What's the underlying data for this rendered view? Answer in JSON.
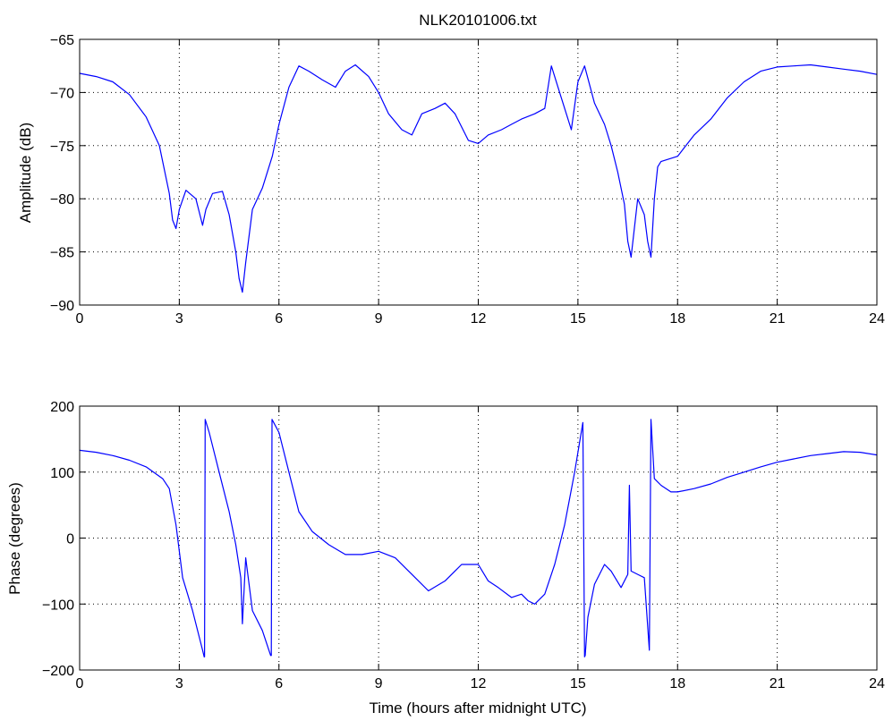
{
  "title": "NLK20101006.txt",
  "colors": {
    "line": "#0000ff",
    "axis": "#000000",
    "grid": "#000000"
  },
  "chart_data": [
    {
      "type": "line",
      "title": "NLK20101006.txt",
      "xlabel": "",
      "ylabel": "Amplitude (dB)",
      "xlim": [
        0,
        24
      ],
      "ylim": [
        -90,
        -65
      ],
      "xticks": [
        "0",
        "3",
        "6",
        "9",
        "12",
        "15",
        "18",
        "21",
        "24"
      ],
      "yticks": [
        "-65",
        "-70",
        "-75",
        "-80",
        "-85",
        "-90"
      ],
      "grid": true,
      "x": [
        0,
        0.5,
        1.0,
        1.5,
        2.0,
        2.4,
        2.7,
        2.8,
        2.9,
        3.0,
        3.2,
        3.5,
        3.7,
        3.8,
        4.0,
        4.3,
        4.5,
        4.7,
        4.8,
        4.9,
        5.0,
        5.2,
        5.5,
        5.8,
        6.0,
        6.3,
        6.6,
        6.9,
        7.3,
        7.7,
        8.0,
        8.3,
        8.7,
        9.0,
        9.3,
        9.7,
        10.0,
        10.3,
        10.7,
        11.0,
        11.3,
        11.7,
        12.0,
        12.3,
        12.7,
        13.0,
        13.3,
        13.7,
        14.0,
        14.2,
        14.5,
        14.8,
        15.0,
        15.2,
        15.5,
        15.8,
        16.0,
        16.2,
        16.4,
        16.5,
        16.6,
        16.8,
        17.0,
        17.1,
        17.2,
        17.3,
        17.4,
        17.5,
        18.0,
        18.5,
        19.0,
        19.5,
        20.0,
        20.5,
        21.0,
        21.5,
        22.0,
        22.5,
        23.0,
        23.5,
        24.0
      ],
      "series": [
        {
          "values": [
            -68.2,
            -68.5,
            -69.0,
            -70.2,
            -72.3,
            -75.0,
            -79.5,
            -82.0,
            -82.8,
            -81.0,
            -79.2,
            -80.0,
            -82.5,
            -81.0,
            -79.5,
            -79.3,
            -81.5,
            -85.0,
            -87.5,
            -88.8,
            -86.0,
            -81.0,
            -79.0,
            -76.0,
            -73.0,
            -69.5,
            -67.5,
            -68.0,
            -68.8,
            -69.5,
            -68.0,
            -67.4,
            -68.5,
            -70.0,
            -72.0,
            -73.5,
            -74.0,
            -72.0,
            -71.5,
            -71.0,
            -72.0,
            -74.5,
            -74.8,
            -74.0,
            -73.5,
            -73.0,
            -72.5,
            -72.0,
            -71.5,
            -67.5,
            -70.5,
            -73.5,
            -69.0,
            -67.5,
            -71.0,
            -73.0,
            -75.0,
            -77.5,
            -80.5,
            -84.0,
            -85.5,
            -80.0,
            -81.5,
            -84.0,
            -85.5,
            -80.0,
            -77.0,
            -76.5,
            -76.0,
            -74.0,
            -72.5,
            -70.5,
            -69.0,
            -68.0,
            -67.6,
            -67.5,
            -67.4,
            -67.6,
            -67.8,
            -68.0,
            -68.3
          ]
        }
      ]
    },
    {
      "type": "line",
      "title": "",
      "xlabel": "Time (hours after midnight UTC)",
      "ylabel": "Phase (degrees)",
      "xlim": [
        0,
        24
      ],
      "ylim": [
        -200,
        200
      ],
      "xticks": [
        "0",
        "3",
        "6",
        "9",
        "12",
        "15",
        "18",
        "21",
        "24"
      ],
      "yticks": [
        "200",
        "100",
        "0",
        "-100",
        "-200"
      ],
      "grid": true,
      "x": [
        0,
        0.5,
        1.0,
        1.5,
        2.0,
        2.5,
        2.7,
        2.9,
        3.1,
        3.4,
        3.7,
        3.75,
        3.76,
        3.78,
        3.9,
        4.2,
        4.5,
        4.7,
        4.85,
        4.9,
        5.0,
        5.2,
        5.5,
        5.75,
        5.77,
        5.79,
        6.0,
        6.3,
        6.6,
        7.0,
        7.5,
        8.0,
        8.5,
        9.0,
        9.5,
        10.0,
        10.5,
        11.0,
        11.5,
        12.0,
        12.3,
        12.6,
        13.0,
        13.3,
        13.5,
        13.7,
        14.0,
        14.3,
        14.6,
        14.9,
        15.15,
        15.2,
        15.22,
        15.3,
        15.5,
        15.8,
        16.0,
        16.3,
        16.5,
        16.55,
        16.6,
        16.8,
        17.0,
        17.15,
        17.2,
        17.3,
        17.5,
        17.8,
        18.0,
        18.5,
        19.0,
        19.5,
        20.0,
        20.5,
        21.0,
        21.5,
        22.0,
        22.5,
        23.0,
        23.5,
        24.0
      ],
      "series": [
        {
          "values": [
            133,
            130,
            125,
            118,
            108,
            90,
            75,
            20,
            -60,
            -110,
            -170,
            -180,
            -180,
            180,
            160,
            100,
            40,
            -10,
            -60,
            -130,
            -30,
            -110,
            -140,
            -178,
            -178,
            180,
            160,
            100,
            40,
            10,
            -10,
            -25,
            -25,
            -20,
            -30,
            -55,
            -80,
            -65,
            -40,
            -40,
            -65,
            -75,
            -90,
            -85,
            -95,
            -100,
            -85,
            -40,
            20,
            100,
            175,
            -180,
            -178,
            -120,
            -70,
            -40,
            -50,
            -75,
            -55,
            80,
            -50,
            -55,
            -60,
            -170,
            180,
            90,
            80,
            70,
            70,
            75,
            82,
            92,
            100,
            108,
            115,
            120,
            125,
            128,
            131,
            130,
            126
          ]
        }
      ]
    }
  ]
}
